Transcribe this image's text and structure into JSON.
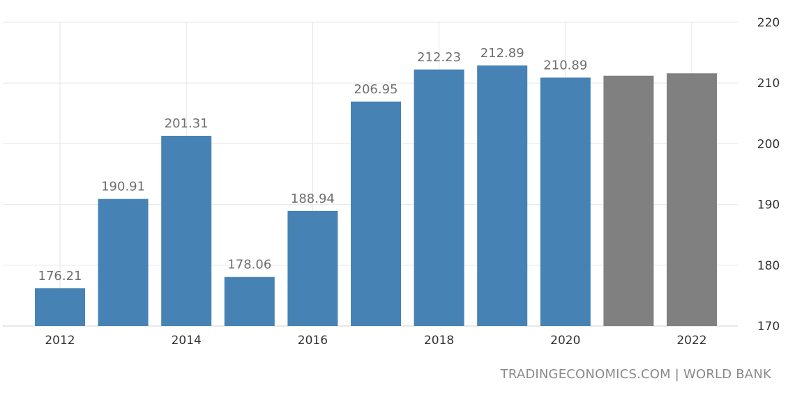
{
  "chart_data": {
    "type": "bar",
    "categories": [
      "2012",
      "2013",
      "2014",
      "2015",
      "2016",
      "2017",
      "2018",
      "2019",
      "2020",
      "2021",
      "2022"
    ],
    "values": [
      176.21,
      190.91,
      201.31,
      178.06,
      188.94,
      206.95,
      212.23,
      212.89,
      210.89,
      211.2,
      211.6
    ],
    "data_labels": [
      "176.21",
      "190.91",
      "201.31",
      "178.06",
      "188.94",
      "206.95",
      "212.23",
      "212.89",
      "210.89",
      "",
      ""
    ],
    "x_tick_labels": [
      "2012",
      "",
      "2014",
      "",
      "2016",
      "",
      "2018",
      "",
      "2020",
      "",
      "2022"
    ],
    "bar_colors": [
      "#4682b4",
      "#4682b4",
      "#4682b4",
      "#4682b4",
      "#4682b4",
      "#4682b4",
      "#4682b4",
      "#4682b4",
      "#4682b4",
      "#808080",
      "#808080"
    ],
    "ylim": [
      170,
      220
    ],
    "y_ticks": [
      170,
      180,
      190,
      200,
      210,
      220
    ],
    "y_axis_side": "right",
    "grid": true,
    "title": "",
    "xlabel": "",
    "ylabel": ""
  },
  "source": "TRADINGECONOMICS.COM  |  WORLD BANK"
}
